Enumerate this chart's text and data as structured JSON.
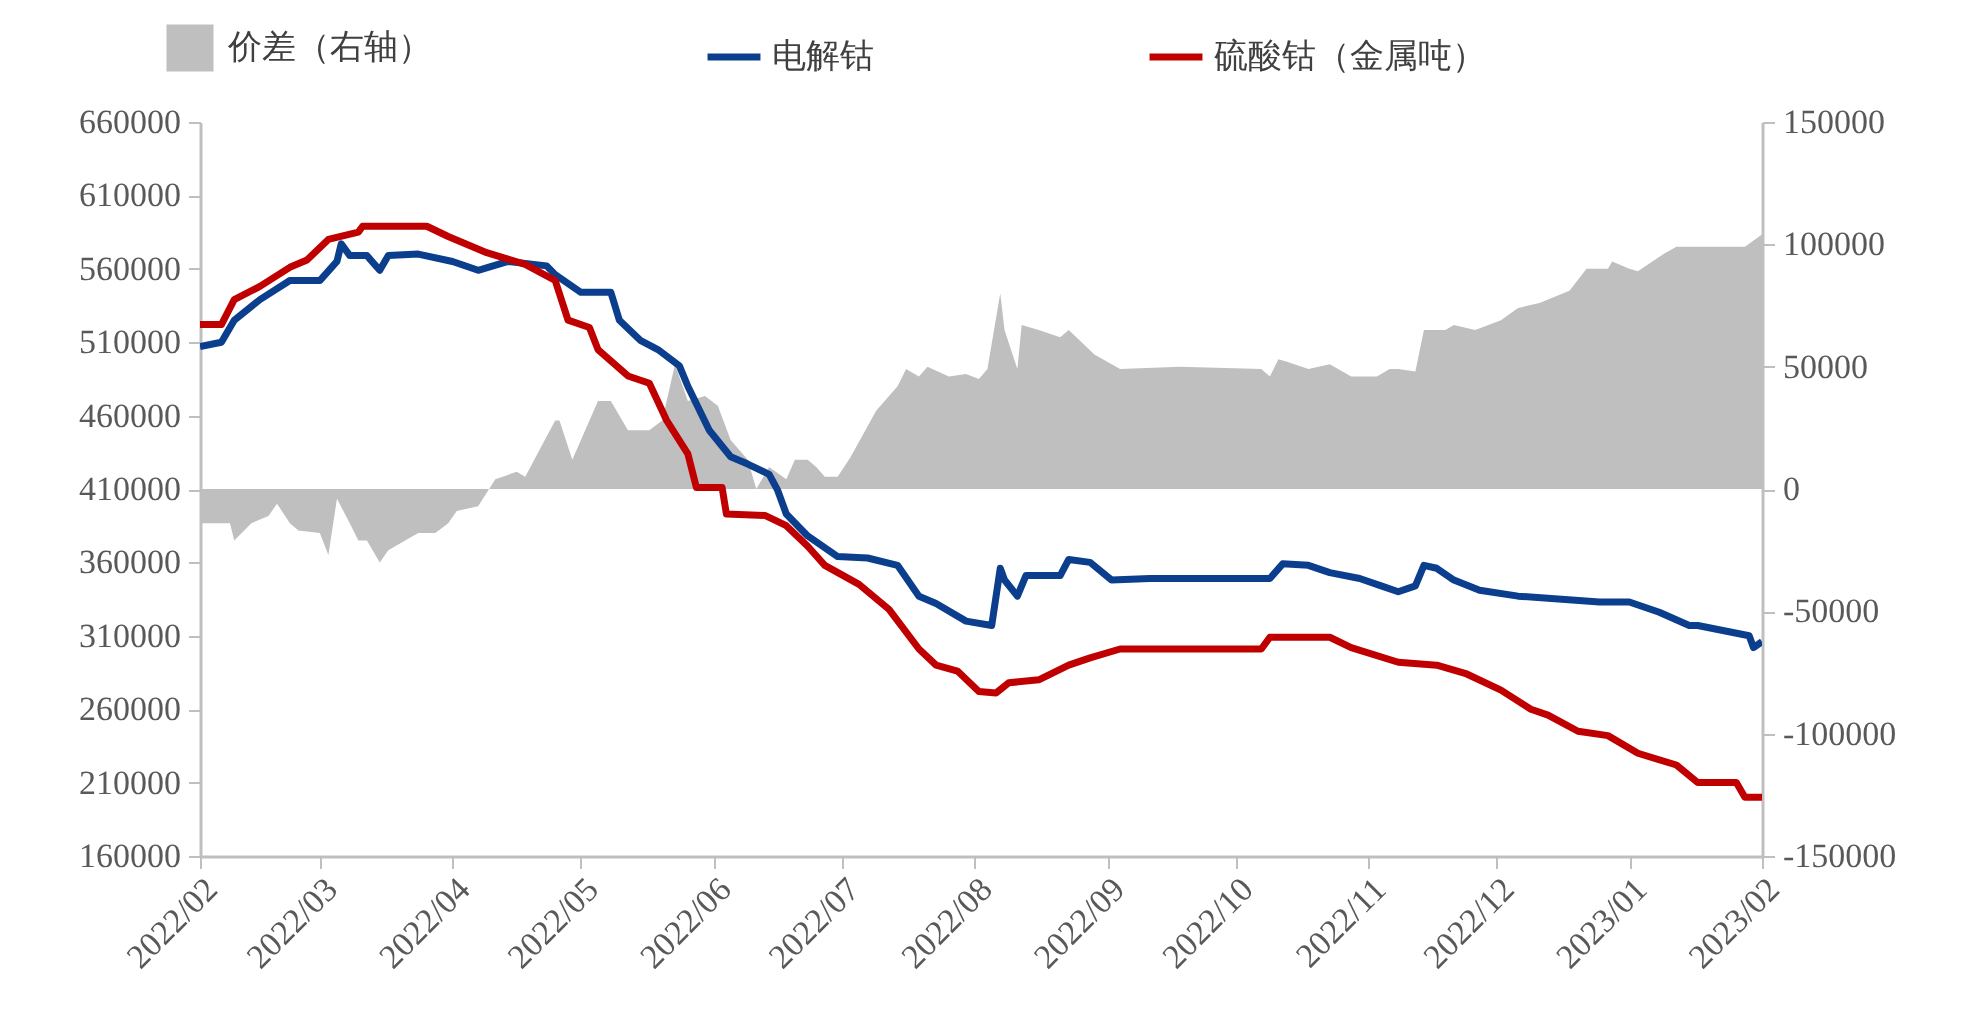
{
  "chart_data": {
    "type": "line",
    "legend": "top",
    "xlim": [
      "2022-02-01",
      "2023-02-01"
    ],
    "xticks": [
      {
        "value": "2022-02-01",
        "label": "2022/02"
      },
      {
        "value": "2022-03-01",
        "label": "2022/03"
      },
      {
        "value": "2022-04-01",
        "label": "2022/04"
      },
      {
        "value": "2022-05-01",
        "label": "2022/05"
      },
      {
        "value": "2022-06-01",
        "label": "2022/06"
      },
      {
        "value": "2022-07-01",
        "label": "2022/07"
      },
      {
        "value": "2022-08-01",
        "label": "2022/08"
      },
      {
        "value": "2022-09-01",
        "label": "2022/09"
      },
      {
        "value": "2022-10-01",
        "label": "2022/10"
      },
      {
        "value": "2022-11-01",
        "label": "2022/11"
      },
      {
        "value": "2022-12-01",
        "label": "2022/12"
      },
      {
        "value": "2023-01-01",
        "label": "2023/01"
      },
      {
        "value": "2023-02-01",
        "label": "2023/02"
      }
    ],
    "ylim": [
      160000,
      660000
    ],
    "yticks": [
      160000,
      210000,
      260000,
      310000,
      360000,
      410000,
      460000,
      510000,
      560000,
      610000,
      660000
    ],
    "y2lim": [
      -150000,
      150000
    ],
    "y2ticks": [
      -150000,
      -100000,
      -50000,
      0,
      50000,
      100000,
      150000
    ],
    "series": [
      {
        "name": "价差（右轴）",
        "type": "area",
        "axis": "y2",
        "color": "#bfbfbf",
        "x": [
          "2022-02-01",
          "2022-02-08",
          "2022-02-09",
          "2022-02-13",
          "2022-02-17",
          "2022-02-19",
          "2022-02-22",
          "2022-02-24",
          "2022-03-01",
          "2022-03-03",
          "2022-03-05",
          "2022-03-08",
          "2022-03-10",
          "2022-03-12",
          "2022-03-15",
          "2022-03-17",
          "2022-03-24",
          "2022-03-28",
          "2022-03-31",
          "2022-04-02",
          "2022-04-07",
          "2022-04-11",
          "2022-04-16",
          "2022-04-18",
          "2022-04-25",
          "2022-04-26",
          "2022-04-29",
          "2022-05-05",
          "2022-05-08",
          "2022-05-12",
          "2022-05-17",
          "2022-05-20",
          "2022-05-23",
          "2022-05-26",
          "2022-05-30",
          "2022-06-02",
          "2022-06-05",
          "2022-06-09",
          "2022-06-11",
          "2022-06-14",
          "2022-06-18",
          "2022-06-20",
          "2022-06-23",
          "2022-06-25",
          "2022-06-27",
          "2022-06-30",
          "2022-07-03",
          "2022-07-09",
          "2022-07-14",
          "2022-07-16",
          "2022-07-19",
          "2022-07-21",
          "2022-07-26",
          "2022-07-30",
          "2022-08-02",
          "2022-08-04",
          "2022-08-07",
          "2022-08-08",
          "2022-08-11",
          "2022-08-12",
          "2022-08-16",
          "2022-08-21",
          "2022-08-23",
          "2022-08-29",
          "2022-09-04",
          "2022-09-18",
          "2022-10-07",
          "2022-10-09",
          "2022-10-11",
          "2022-10-13",
          "2022-10-18",
          "2022-10-23",
          "2022-10-28",
          "2022-11-03",
          "2022-11-06",
          "2022-11-08",
          "2022-11-12",
          "2022-11-14",
          "2022-11-19",
          "2022-11-21",
          "2022-11-26",
          "2022-12-02",
          "2022-12-06",
          "2022-12-11",
          "2022-12-18",
          "2022-12-22",
          "2022-12-27",
          "2022-12-28",
          "2023-01-01",
          "2023-01-03",
          "2023-01-09",
          "2023-01-12",
          "2023-01-17",
          "2023-01-28",
          "2023-02-01"
        ],
        "values": [
          -14000,
          -14000,
          -21000,
          -14000,
          -11000,
          -6000,
          -14000,
          -17000,
          -18000,
          -27000,
          -4000,
          -14000,
          -21000,
          -21000,
          -30000,
          -25000,
          -18000,
          -18000,
          -14000,
          -9000,
          -7000,
          4000,
          7000,
          5000,
          28000,
          28000,
          12000,
          36000,
          36000,
          24000,
          24000,
          28000,
          51000,
          36000,
          38000,
          34000,
          20000,
          12000,
          0,
          9000,
          4000,
          12000,
          12000,
          9000,
          5000,
          5000,
          13000,
          32000,
          42000,
          49000,
          46000,
          50000,
          46000,
          47000,
          45000,
          49000,
          80000,
          65000,
          49000,
          67000,
          65000,
          62000,
          65000,
          55000,
          49000,
          50000,
          49000,
          46000,
          53000,
          52000,
          49000,
          51000,
          46000,
          46000,
          49000,
          49000,
          48000,
          65000,
          65000,
          67000,
          65000,
          69000,
          74000,
          76000,
          81000,
          90000,
          90000,
          93000,
          90000,
          89000,
          96000,
          99000,
          99000,
          99000,
          104000
        ]
      },
      {
        "name": "电解钴",
        "axis": "y",
        "color": "#0c3e8e",
        "x": [
          "2022-02-01",
          "2022-02-06",
          "2022-02-09",
          "2022-02-15",
          "2022-02-22",
          "2022-03-01",
          "2022-03-05",
          "2022-03-06",
          "2022-03-08",
          "2022-03-12",
          "2022-03-15",
          "2022-03-17",
          "2022-03-24",
          "2022-04-01",
          "2022-04-07",
          "2022-04-14",
          "2022-04-23",
          "2022-04-25",
          "2022-05-01",
          "2022-05-08",
          "2022-05-10",
          "2022-05-15",
          "2022-05-19",
          "2022-05-24",
          "2022-05-26",
          "2022-05-31",
          "2022-06-05",
          "2022-06-09",
          "2022-06-14",
          "2022-06-16",
          "2022-06-18",
          "2022-06-23",
          "2022-06-30",
          "2022-07-07",
          "2022-07-14",
          "2022-07-19",
          "2022-07-23",
          "2022-07-30",
          "2022-08-05",
          "2022-08-07",
          "2022-08-08",
          "2022-08-11",
          "2022-08-13",
          "2022-08-21",
          "2022-08-23",
          "2022-08-28",
          "2022-09-02",
          "2022-09-11",
          "2022-09-28",
          "2022-10-09",
          "2022-10-12",
          "2022-10-18",
          "2022-10-23",
          "2022-10-30",
          "2022-11-04",
          "2022-11-08",
          "2022-11-12",
          "2022-11-14",
          "2022-11-17",
          "2022-11-21",
          "2022-11-27",
          "2022-12-06",
          "2022-12-25",
          "2023-01-01",
          "2023-01-08",
          "2023-01-15",
          "2023-01-17",
          "2023-01-29",
          "2023-01-30",
          "2023-02-01"
        ],
        "values": [
          507000,
          510000,
          525000,
          539000,
          552000,
          552000,
          565000,
          577000,
          569000,
          569000,
          559000,
          569000,
          570000,
          565000,
          559000,
          565000,
          562000,
          556000,
          544000,
          544000,
          525000,
          511000,
          505000,
          494000,
          480000,
          450000,
          432000,
          427000,
          420000,
          409000,
          393000,
          378000,
          364000,
          363000,
          358000,
          337000,
          332000,
          320000,
          317000,
          356000,
          348000,
          337000,
          351000,
          351000,
          362000,
          360000,
          348000,
          349000,
          349000,
          349000,
          359000,
          358000,
          353000,
          349000,
          344000,
          340000,
          344000,
          358000,
          356000,
          348000,
          341000,
          337000,
          333000,
          333000,
          326000,
          317000,
          317000,
          310000,
          302000,
          306000
        ]
      },
      {
        "name": "硫酸钴（金属吨）",
        "axis": "y",
        "color": "#c00000",
        "x": [
          "2022-02-01",
          "2022-02-06",
          "2022-02-09",
          "2022-02-15",
          "2022-02-22",
          "2022-02-26",
          "2022-03-03",
          "2022-03-10",
          "2022-03-11",
          "2022-03-26",
          "2022-03-31",
          "2022-04-09",
          "2022-04-18",
          "2022-04-25",
          "2022-04-28",
          "2022-05-03",
          "2022-05-05",
          "2022-05-12",
          "2022-05-17",
          "2022-05-21",
          "2022-05-26",
          "2022-05-28",
          "2022-06-03",
          "2022-06-04",
          "2022-06-13",
          "2022-06-18",
          "2022-06-23",
          "2022-06-27",
          "2022-07-05",
          "2022-07-12",
          "2022-07-19",
          "2022-07-23",
          "2022-07-28",
          "2022-08-02",
          "2022-08-06",
          "2022-08-09",
          "2022-08-16",
          "2022-08-23",
          "2022-08-28",
          "2022-09-04",
          "2022-09-23",
          "2022-10-07",
          "2022-10-09",
          "2022-10-23",
          "2022-10-28",
          "2022-11-08",
          "2022-11-17",
          "2022-11-24",
          "2022-12-02",
          "2022-12-09",
          "2022-12-13",
          "2022-12-20",
          "2022-12-27",
          "2023-01-03",
          "2023-01-12",
          "2023-01-17",
          "2023-01-26",
          "2023-01-28",
          "2023-02-01"
        ],
        "values": [
          522000,
          522000,
          539000,
          548000,
          561000,
          566000,
          580000,
          585000,
          589000,
          589000,
          582000,
          571000,
          563000,
          552000,
          525000,
          520000,
          505000,
          487000,
          482000,
          457000,
          434000,
          411000,
          411000,
          393000,
          392000,
          385000,
          371000,
          358000,
          345000,
          328000,
          301000,
          290000,
          286000,
          272000,
          271000,
          278000,
          280000,
          290000,
          295000,
          301000,
          301000,
          301000,
          309000,
          309000,
          302000,
          292000,
          290000,
          284000,
          273000,
          260000,
          256000,
          245000,
          242000,
          230000,
          222000,
          210000,
          210000,
          200000,
          200000
        ]
      }
    ]
  }
}
